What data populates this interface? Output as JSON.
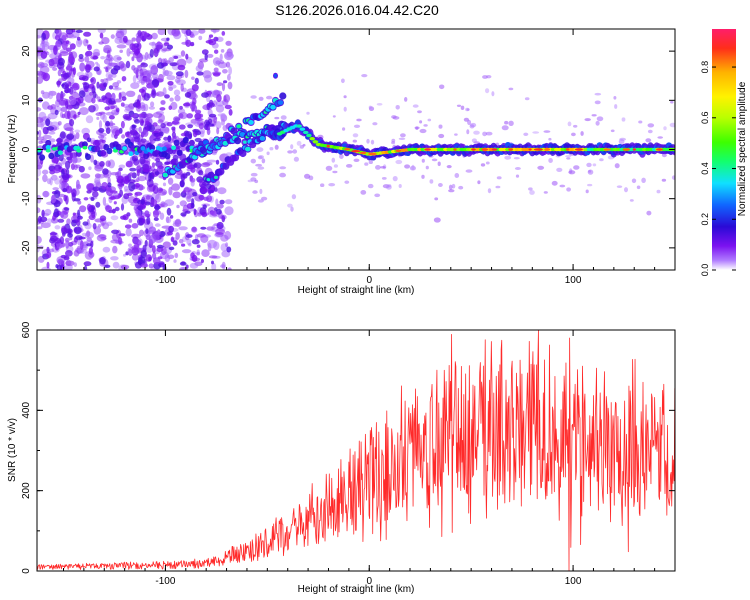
{
  "title": "S126.2026.016.04.42.C20",
  "chart_data": [
    {
      "type": "heatmap",
      "title": "S126.2026.016.04.42.C20",
      "xlabel": "Height of straight line (km)",
      "ylabel": "Frequency (Hz)",
      "xlim": [
        -163,
        150
      ],
      "ylim": [
        -24.5,
        24.5
      ],
      "xticks": [
        -100,
        0,
        100
      ],
      "yticks": [
        -20,
        -10,
        0,
        10,
        20
      ],
      "colorbar": {
        "label": "Normalized spectral amplitude",
        "range": [
          0,
          0.95
        ],
        "ticks": [
          0.0,
          0.2,
          0.4,
          0.6,
          0.8
        ],
        "stops": [
          "#ffffff",
          "#b07bff",
          "#7b12f0",
          "#2a0ad6",
          "#1066ff",
          "#10e0ff",
          "#12ff6e",
          "#3dff00",
          "#b8ff00",
          "#fff200",
          "#ffb300",
          "#ff2e1a",
          "#ff1e6a"
        ]
      },
      "ridge": {
        "description": "main signal near 0 Hz from about -35 km to 150 km, rising branches between -100 and -40 km",
        "points": [
          {
            "x": -45,
            "f": 3.0
          },
          {
            "x": -35,
            "f": 5.0
          },
          {
            "x": -25,
            "f": 1.0
          },
          {
            "x": -10,
            "f": 0.0
          },
          {
            "x": 0,
            "f": -1.0
          },
          {
            "x": 20,
            "f": 0.0
          },
          {
            "x": 100,
            "f": 0.0
          },
          {
            "x": 150,
            "f": 0.0
          }
        ]
      }
    },
    {
      "type": "line",
      "xlabel": "Height of straight line (km)",
      "ylabel": "SNR (10 * v/v)",
      "xlim": [
        -163,
        150
      ],
      "ylim": [
        0,
        600
      ],
      "xticks": [
        -100,
        0,
        100
      ],
      "yticks": [
        0,
        200,
        400,
        600
      ],
      "color": "#ff2a2a",
      "envelope": [
        {
          "x": -163,
          "y": 10
        },
        {
          "x": -100,
          "y": 15
        },
        {
          "x": -80,
          "y": 20
        },
        {
          "x": -60,
          "y": 50
        },
        {
          "x": -40,
          "y": 90
        },
        {
          "x": -20,
          "y": 150
        },
        {
          "x": 0,
          "y": 230
        },
        {
          "x": 20,
          "y": 300
        },
        {
          "x": 40,
          "y": 340
        },
        {
          "x": 60,
          "y": 360
        },
        {
          "x": 80,
          "y": 360
        },
        {
          "x": 100,
          "y": 330
        },
        {
          "x": 120,
          "y": 310
        },
        {
          "x": 150,
          "y": 300
        }
      ],
      "peak": {
        "x": 83,
        "y": 600
      }
    }
  ]
}
